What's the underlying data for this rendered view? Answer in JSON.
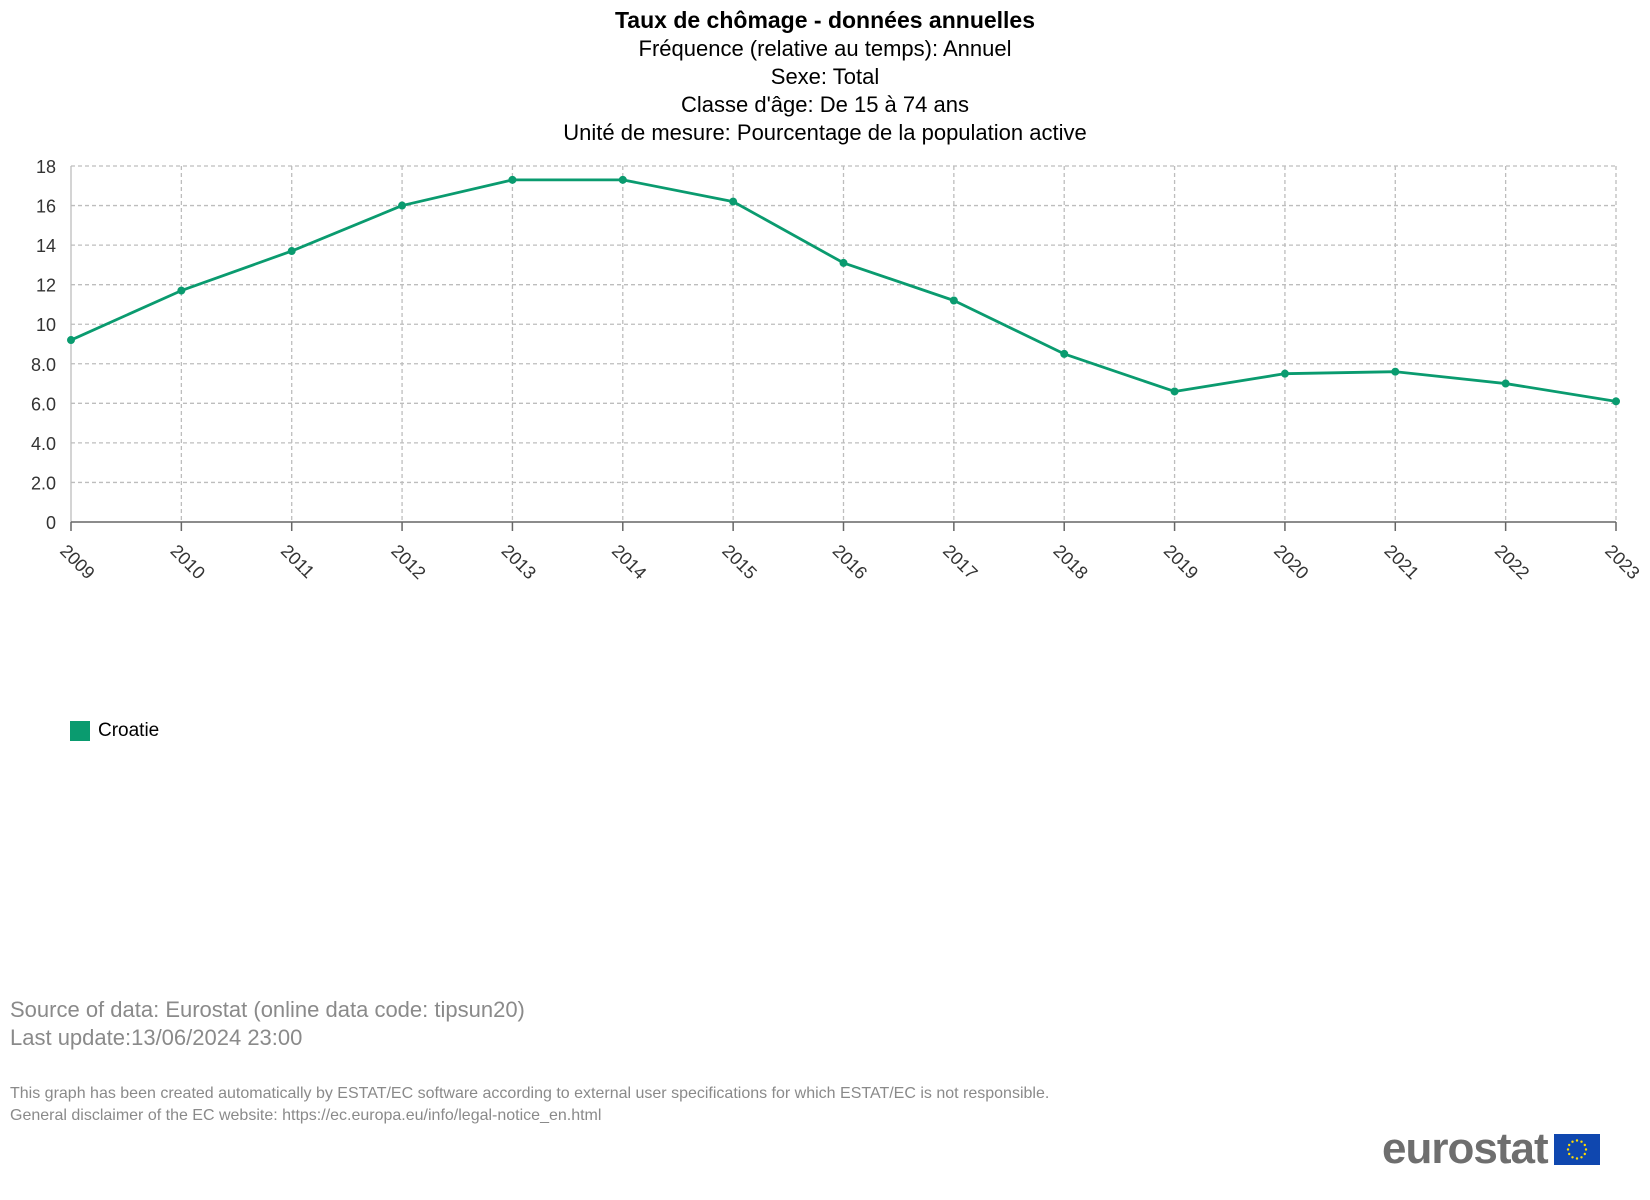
{
  "chart_data": {
    "type": "line",
    "title": "Taux de chômage - données annuelles",
    "subtitle_lines": [
      "Fréquence (relative au temps): Annuel",
      "Sexe: Total",
      "Classe d'âge: De 15 à 74 ans",
      "Unité de mesure: Pourcentage de la population active"
    ],
    "x": [
      "2009",
      "2010",
      "2011",
      "2012",
      "2013",
      "2014",
      "2015",
      "2016",
      "2017",
      "2018",
      "2019",
      "2020",
      "2021",
      "2022",
      "2023"
    ],
    "series": [
      {
        "name": "Croatie",
        "color": "#0a9b6f",
        "values": [
          9.2,
          11.7,
          13.7,
          16.0,
          17.3,
          17.3,
          16.2,
          13.1,
          11.2,
          8.5,
          6.6,
          7.5,
          7.6,
          7.0,
          6.1
        ]
      }
    ],
    "ylim": [
      0,
      18
    ],
    "yticks": [
      0,
      2,
      4,
      6,
      8,
      10,
      12,
      14,
      16,
      18
    ],
    "ytick_labels": [
      "0",
      "2.0",
      "4.0",
      "6.0",
      "8.0",
      "10",
      "12",
      "14",
      "16",
      "18"
    ],
    "grid": true,
    "legend_position": "bottom-left"
  },
  "footer": {
    "source": "Source of data: Eurostat (online data code: tipsun20)",
    "last_update": "Last update:13/06/2024 23:00",
    "disclaimer_1": "This graph has been created automatically by ESTAT/EC software according to external user specifications for which ESTAT/EC is not responsible.",
    "disclaimer_2": "General disclaimer of the EC website: https://ec.europa.eu/info/legal-notice_en.html",
    "logo_text": "eurostat",
    "flag_icon": "eu-flag-icon"
  }
}
